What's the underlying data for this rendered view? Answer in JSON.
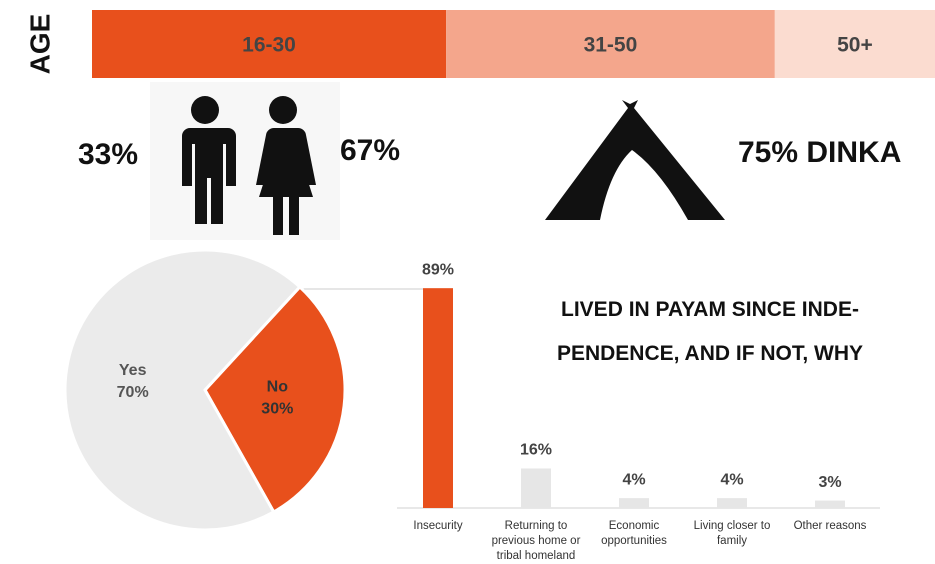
{
  "chart_data": [
    {
      "type": "stacked_bar",
      "label": "AGE",
      "categories": [
        "16-30",
        "31-50",
        "50+"
      ],
      "values": [
        42,
        39,
        19
      ],
      "colors": [
        "#e8501c",
        "#f4a68c",
        "#fbdcd0"
      ]
    },
    {
      "type": "pie",
      "categories": [
        "No",
        "Yes"
      ],
      "values": [
        30,
        70
      ],
      "value_labels": [
        "30%",
        "70%"
      ],
      "colors": [
        "#e8501c",
        "#ebebeb"
      ]
    },
    {
      "type": "bar",
      "title": "LIVED IN PAYAM SINCE INDE-PENDENCE, AND IF NOT, WHY",
      "categories": [
        "Insecurity",
        "Returning to previous home or tribal homeland",
        "Economic opportunities",
        "Living closer to family",
        "Other reasons"
      ],
      "values": [
        89,
        16,
        4,
        4,
        3
      ],
      "value_labels": [
        "89%",
        "16%",
        "4%",
        "4%",
        "3%"
      ],
      "colors": [
        "#e8501c",
        "#e6e6e6",
        "#e6e6e6",
        "#e6e6e6",
        "#e6e6e6"
      ],
      "ylim": [
        0,
        100
      ]
    }
  ],
  "infographic": {
    "male": "33%",
    "female": "67%",
    "ethnicity": "75% DINKA"
  }
}
